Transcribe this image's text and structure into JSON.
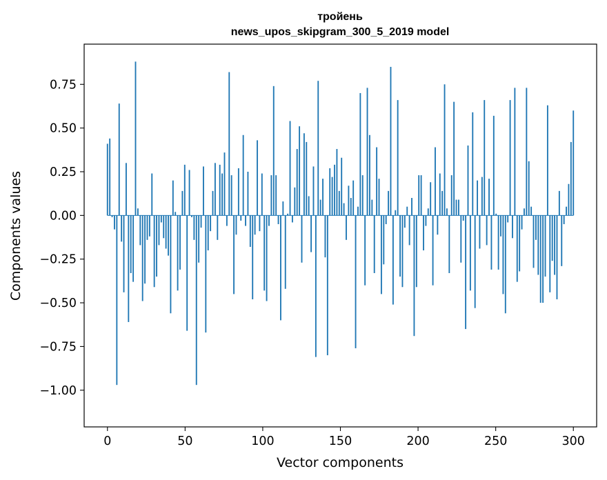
{
  "chart_data": {
    "type": "bar",
    "title": "тройень",
    "subtitle": "news_upos_skipgram_300_5_2019 model",
    "xlabel": "Vector components",
    "ylabel": "Components values",
    "xlim": [
      -15,
      315
    ],
    "ylim": [
      -1.21,
      0.98
    ],
    "xticks": [
      {
        "value": 0,
        "label": "0"
      },
      {
        "value": 50,
        "label": "50"
      },
      {
        "value": 100,
        "label": "100"
      },
      {
        "value": 150,
        "label": "150"
      },
      {
        "value": 200,
        "label": "200"
      },
      {
        "value": 250,
        "label": "250"
      },
      {
        "value": 300,
        "label": "300"
      }
    ],
    "yticks": [
      {
        "value": 0.75,
        "label": "0.75"
      },
      {
        "value": 0.5,
        "label": "0.50"
      },
      {
        "value": 0.25,
        "label": "0.25"
      },
      {
        "value": 0.0,
        "label": "0.00"
      },
      {
        "value": -0.25,
        "label": "−0.25"
      },
      {
        "value": -0.5,
        "label": "−0.50"
      },
      {
        "value": -0.75,
        "label": "−0.75"
      },
      {
        "value": -1.0,
        "label": "−1.00"
      }
    ],
    "bar_color": "#1f77b4",
    "values": [
      0.41,
      0.44,
      -0.01,
      -0.08,
      -0.97,
      0.64,
      -0.15,
      -0.44,
      0.3,
      -0.61,
      -0.33,
      -0.38,
      0.88,
      0.04,
      -0.17,
      -0.49,
      -0.39,
      -0.14,
      -0.12,
      0.24,
      -0.41,
      -0.35,
      -0.17,
      -0.04,
      -0.13,
      -0.19,
      -0.23,
      -0.56,
      0.2,
      0.02,
      -0.43,
      -0.31,
      0.14,
      0.29,
      -0.66,
      0.26,
      -0.01,
      -0.14,
      -0.97,
      -0.27,
      -0.07,
      0.28,
      -0.67,
      -0.2,
      -0.09,
      0.14,
      0.3,
      -0.14,
      0.29,
      0.24,
      0.36,
      -0.06,
      0.82,
      0.23,
      -0.45,
      -0.11,
      0.27,
      -0.03,
      0.46,
      -0.06,
      0.25,
      -0.18,
      -0.48,
      -0.11,
      0.43,
      -0.09,
      0.24,
      -0.43,
      -0.49,
      -0.06,
      0.23,
      0.74,
      0.23,
      -0.05,
      -0.6,
      0.08,
      -0.42,
      0.01,
      0.54,
      -0.04,
      0.16,
      0.38,
      0.51,
      -0.27,
      0.47,
      0.42,
      0.11,
      -0.21,
      0.28,
      -0.81,
      0.77,
      0.09,
      0.21,
      -0.24,
      -0.8,
      0.27,
      0.22,
      0.29,
      0.38,
      0.14,
      0.33,
      0.07,
      -0.14,
      0.17,
      0.1,
      0.2,
      -0.76,
      0.05,
      0.7,
      0.23,
      -0.4,
      0.73,
      0.46,
      0.09,
      -0.33,
      0.39,
      0.21,
      -0.45,
      -0.28,
      -0.05,
      0.14,
      0.85,
      -0.51,
      0.03,
      0.66,
      -0.35,
      -0.41,
      -0.07,
      0.05,
      -0.17,
      0.1,
      -0.69,
      -0.41,
      0.23,
      0.23,
      -0.2,
      -0.06,
      0.04,
      0.19,
      -0.4,
      0.39,
      -0.11,
      0.24,
      0.14,
      0.75,
      0.04,
      -0.33,
      0.23,
      0.65,
      0.09,
      0.09,
      -0.27,
      -0.03,
      -0.65,
      0.4,
      -0.43,
      0.59,
      -0.53,
      0.2,
      -0.19,
      0.22,
      0.66,
      -0.17,
      0.21,
      -0.31,
      0.57,
      0.01,
      -0.31,
      -0.12,
      -0.45,
      -0.56,
      -0.04,
      0.66,
      -0.13,
      0.73,
      -0.38,
      -0.32,
      -0.08,
      0.04,
      0.73,
      0.31,
      0.05,
      -0.3,
      -0.14,
      -0.34,
      -0.5,
      -0.5,
      -0.35,
      0.63,
      -0.44,
      -0.26,
      -0.34,
      -0.48,
      0.14,
      -0.29,
      -0.05,
      0.05,
      0.18,
      0.42,
      0.6
    ]
  }
}
